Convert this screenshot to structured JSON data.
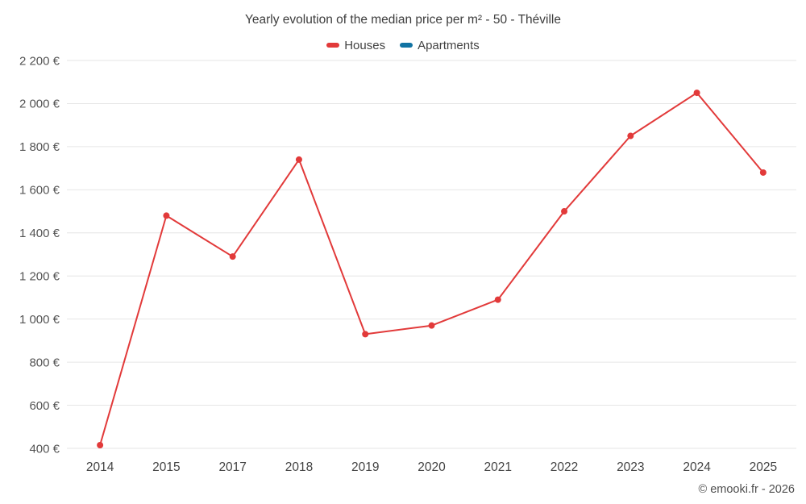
{
  "title": "Yearly evolution of the median price per m² - 50 - Théville",
  "footer": "© emooki.fr - 2026",
  "axis": {
    "y_suffix": " €",
    "label_color": "#545454",
    "grid_color": "#e6e6e6"
  },
  "chart_data": {
    "type": "line",
    "title": "Yearly evolution of the median price per m² - 50 - Théville",
    "categories": [
      "2014",
      "2015",
      "2017",
      "2018",
      "2019",
      "2020",
      "2021",
      "2022",
      "2023",
      "2024",
      "2025"
    ],
    "series": [
      {
        "name": "Houses",
        "color": "#e23a3a",
        "values": [
          415,
          1480,
          1290,
          1740,
          930,
          970,
          1090,
          1500,
          1850,
          2050,
          1680
        ]
      },
      {
        "name": "Apartments",
        "color": "#1173a3",
        "values": []
      }
    ],
    "xlabel": "",
    "ylabel": "",
    "ylim": [
      400,
      2200
    ],
    "ytick_step": 200,
    "ytick_format": "{value} €",
    "grid": "horizontal",
    "legend_position": "top",
    "marker": "circle"
  }
}
